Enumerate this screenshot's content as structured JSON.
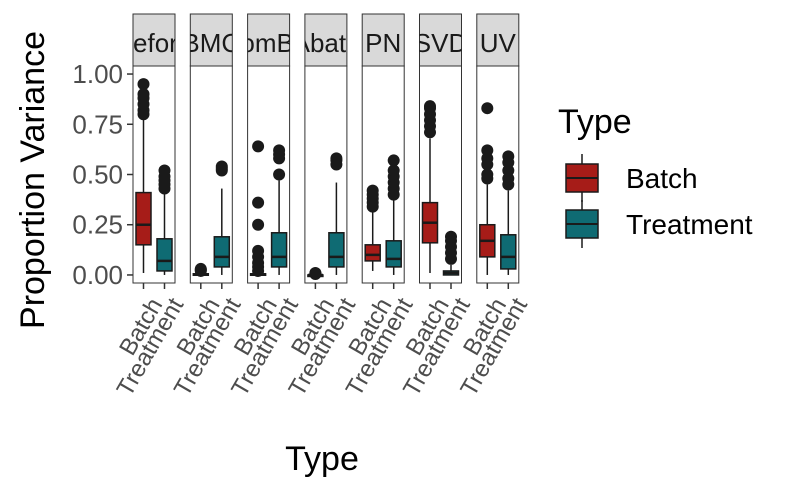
{
  "chart_data": {
    "type": "boxplot",
    "xlabel": "Type",
    "ylabel": "Proportion Variance",
    "ylim": [
      -0.04,
      1.04
    ],
    "yticks": [
      0.0,
      0.25,
      0.5,
      0.75,
      1.0
    ],
    "ytick_labels": [
      "0.00",
      "0.25",
      "0.50",
      "0.75",
      "1.00"
    ],
    "grid": false,
    "legend": {
      "title": "Type",
      "position": "right",
      "entries": [
        {
          "name": "Batch",
          "color": "#a61c18"
        },
        {
          "name": "Treatment",
          "color": "#0f6b73"
        }
      ]
    },
    "categories": [
      "Batch",
      "Treatment"
    ],
    "panels": [
      {
        "label": "Before",
        "boxes": [
          {
            "type": "Batch",
            "min": 0.01,
            "q1": 0.15,
            "median": 0.25,
            "q3": 0.41,
            "max": 0.78,
            "outliers": [
              0.8,
              0.82,
              0.85,
              0.88,
              0.9,
              0.95
            ]
          },
          {
            "type": "Treatment",
            "min": 0.0,
            "q1": 0.02,
            "median": 0.07,
            "q3": 0.18,
            "max": 0.41,
            "outliers": [
              0.43,
              0.45,
              0.47,
              0.49,
              0.52
            ]
          }
        ]
      },
      {
        "label": "BMC",
        "boxes": [
          {
            "type": "Batch",
            "min": 0.0,
            "q1": 0.001,
            "median": 0.003,
            "q3": 0.006,
            "max": 0.012,
            "outliers": [
              0.02,
              0.025,
              0.03
            ]
          },
          {
            "type": "Treatment",
            "min": 0.0,
            "q1": 0.04,
            "median": 0.09,
            "q3": 0.19,
            "max": 0.43,
            "outliers": [
              0.52,
              0.53,
              0.54
            ]
          }
        ]
      },
      {
        "label": "ComBat",
        "boxes": [
          {
            "type": "Batch",
            "min": 0.0,
            "q1": 0.001,
            "median": 0.003,
            "q3": 0.006,
            "max": 0.012,
            "outliers": [
              0.02,
              0.04,
              0.06,
              0.09,
              0.12,
              0.25,
              0.36,
              0.64
            ]
          },
          {
            "type": "Treatment",
            "min": 0.0,
            "q1": 0.04,
            "median": 0.09,
            "q3": 0.21,
            "max": 0.47,
            "outliers": [
              0.5,
              0.58,
              0.6,
              0.62
            ]
          }
        ]
      },
      {
        "label": "FAbatch",
        "boxes": [
          {
            "type": "Batch",
            "min": 0.0,
            "q1": 0.0,
            "median": 0.0,
            "q3": 0.0,
            "max": 0.003,
            "outliers": [
              0.005,
              0.008,
              0.01
            ]
          },
          {
            "type": "Treatment",
            "min": 0.0,
            "q1": 0.04,
            "median": 0.09,
            "q3": 0.21,
            "max": 0.46,
            "outliers": [
              0.55,
              0.57,
              0.58
            ]
          }
        ]
      },
      {
        "label": "PN",
        "boxes": [
          {
            "type": "Batch",
            "min": 0.02,
            "q1": 0.07,
            "median": 0.1,
            "q3": 0.15,
            "max": 0.32,
            "outliers": [
              0.34,
              0.36,
              0.38,
              0.4,
              0.42
            ]
          },
          {
            "type": "Treatment",
            "min": 0.0,
            "q1": 0.04,
            "median": 0.08,
            "q3": 0.17,
            "max": 0.38,
            "outliers": [
              0.4,
              0.43,
              0.46,
              0.49,
              0.52,
              0.57
            ]
          }
        ]
      },
      {
        "label": "SVD",
        "boxes": [
          {
            "type": "Batch",
            "min": 0.01,
            "q1": 0.16,
            "median": 0.26,
            "q3": 0.36,
            "max": 0.68,
            "outliers": [
              0.71,
              0.74,
              0.77,
              0.8,
              0.83,
              0.84
            ]
          },
          {
            "type": "Treatment",
            "min": 0.0,
            "q1": 0.0,
            "median": 0.01,
            "q3": 0.02,
            "max": 0.05,
            "outliers": [
              0.08,
              0.11,
              0.14,
              0.17,
              0.19
            ]
          }
        ]
      },
      {
        "label": "UV",
        "boxes": [
          {
            "type": "Batch",
            "min": 0.0,
            "q1": 0.09,
            "median": 0.17,
            "q3": 0.25,
            "max": 0.45,
            "outliers": [
              0.48,
              0.5,
              0.55,
              0.58,
              0.62,
              0.83
            ]
          },
          {
            "type": "Treatment",
            "min": 0.0,
            "q1": 0.03,
            "median": 0.09,
            "q3": 0.2,
            "max": 0.42,
            "outliers": [
              0.45,
              0.48,
              0.52,
              0.56,
              0.59
            ]
          }
        ]
      }
    ]
  }
}
